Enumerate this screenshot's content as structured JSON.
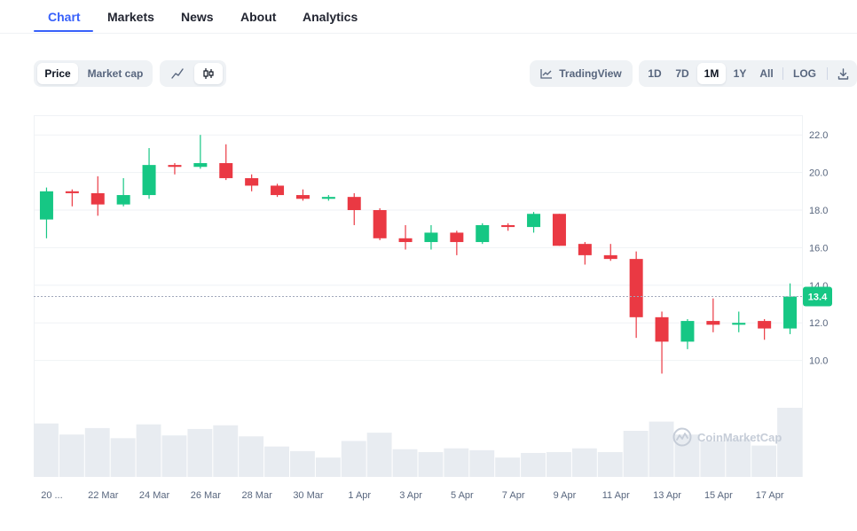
{
  "tabs": [
    {
      "label": "Chart"
    },
    {
      "label": "Markets"
    },
    {
      "label": "News"
    },
    {
      "label": "About"
    },
    {
      "label": "Analytics"
    }
  ],
  "toolbar": {
    "metric_toggle": [
      "Price",
      "Market cap"
    ],
    "type_icons": [
      "line-chart-icon",
      "candlestick-icon"
    ],
    "tradingview_label": "TradingView",
    "ranges": [
      "1D",
      "7D",
      "1M",
      "1Y",
      "All"
    ],
    "selected_range": "1M",
    "log_label": "LOG",
    "download_icon": "download-icon"
  },
  "colors": {
    "up": "#16c784",
    "down": "#ea3943",
    "accent": "#3861fb",
    "volume": "#e8ecf1"
  },
  "watermark": "CoinMarketCap",
  "chart_data": {
    "type": "candlestick",
    "ylim": [
      8.0,
      23.0
    ],
    "yticks": [
      10.0,
      12.0,
      14.0,
      16.0,
      18.0,
      20.0,
      22.0
    ],
    "ytick_labels": [
      "10.0",
      "12.0",
      "14.0",
      "16.0",
      "18.0",
      "20.0",
      "22.0"
    ],
    "current_price": 13.4,
    "current_price_label": "13.4",
    "xtick_labels": [
      "20 ...",
      "22 Mar",
      "24 Mar",
      "26 Mar",
      "28 Mar",
      "30 Mar",
      "1 Apr",
      "3 Apr",
      "5 Apr",
      "7 Apr",
      "9 Apr",
      "11 Apr",
      "13 Apr",
      "15 Apr",
      "17 Apr"
    ],
    "candles": [
      {
        "open": 17.5,
        "high": 19.2,
        "low": 16.5,
        "close": 19.0
      },
      {
        "open": 19.0,
        "high": 19.1,
        "low": 18.2,
        "close": 18.9
      },
      {
        "open": 18.9,
        "high": 19.8,
        "low": 17.7,
        "close": 18.3
      },
      {
        "open": 18.3,
        "high": 19.7,
        "low": 18.2,
        "close": 18.8
      },
      {
        "open": 18.8,
        "high": 21.3,
        "low": 18.6,
        "close": 20.4
      },
      {
        "open": 20.4,
        "high": 20.5,
        "low": 19.9,
        "close": 20.3
      },
      {
        "open": 20.3,
        "high": 22.0,
        "low": 20.2,
        "close": 20.5
      },
      {
        "open": 20.5,
        "high": 21.5,
        "low": 19.6,
        "close": 19.7
      },
      {
        "open": 19.7,
        "high": 19.9,
        "low": 19.0,
        "close": 19.3
      },
      {
        "open": 19.3,
        "high": 19.4,
        "low": 18.7,
        "close": 18.8
      },
      {
        "open": 18.8,
        "high": 19.1,
        "low": 18.5,
        "close": 18.6
      },
      {
        "open": 18.6,
        "high": 18.8,
        "low": 18.5,
        "close": 18.7
      },
      {
        "open": 18.7,
        "high": 18.9,
        "low": 17.2,
        "close": 18.0
      },
      {
        "open": 18.0,
        "high": 18.1,
        "low": 16.4,
        "close": 16.5
      },
      {
        "open": 16.5,
        "high": 17.2,
        "low": 15.9,
        "close": 16.3
      },
      {
        "open": 16.3,
        "high": 17.2,
        "low": 15.9,
        "close": 16.8
      },
      {
        "open": 16.8,
        "high": 16.9,
        "low": 15.6,
        "close": 16.3
      },
      {
        "open": 16.3,
        "high": 17.3,
        "low": 16.2,
        "close": 17.2
      },
      {
        "open": 17.2,
        "high": 17.3,
        "low": 16.9,
        "close": 17.1
      },
      {
        "open": 17.1,
        "high": 17.9,
        "low": 16.8,
        "close": 17.8
      },
      {
        "open": 17.8,
        "high": 17.8,
        "low": 16.1,
        "close": 16.1
      },
      {
        "open": 16.2,
        "high": 16.3,
        "low": 15.1,
        "close": 15.6
      },
      {
        "open": 15.6,
        "high": 16.2,
        "low": 15.3,
        "close": 15.4
      },
      {
        "open": 15.4,
        "high": 15.8,
        "low": 11.2,
        "close": 12.3
      },
      {
        "open": 12.3,
        "high": 12.6,
        "low": 9.3,
        "close": 11.0
      },
      {
        "open": 11.0,
        "high": 12.2,
        "low": 10.6,
        "close": 12.1
      },
      {
        "open": 12.1,
        "high": 13.3,
        "low": 11.5,
        "close": 11.9
      },
      {
        "open": 11.9,
        "high": 12.6,
        "low": 11.5,
        "close": 12.0
      },
      {
        "open": 12.1,
        "high": 12.2,
        "low": 11.1,
        "close": 11.7
      },
      {
        "open": 11.7,
        "high": 14.1,
        "low": 11.4,
        "close": 13.4
      }
    ],
    "volume_relative": [
      0.58,
      0.46,
      0.53,
      0.42,
      0.57,
      0.45,
      0.52,
      0.56,
      0.44,
      0.33,
      0.28,
      0.21,
      0.39,
      0.48,
      0.3,
      0.27,
      0.31,
      0.29,
      0.21,
      0.26,
      0.27,
      0.31,
      0.27,
      0.5,
      0.6,
      0.46,
      0.39,
      0.41,
      0.34,
      0.75
    ]
  }
}
